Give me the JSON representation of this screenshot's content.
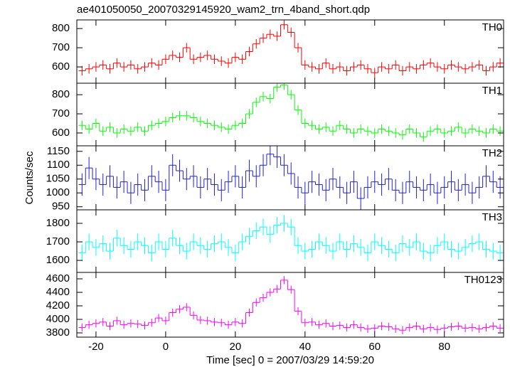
{
  "chart_data": [
    {
      "type": "line",
      "title": "ae401050050_20070329145920_wam2_trn_4band_short.qdp",
      "x": [
        -24,
        -22,
        -20,
        -18,
        -16,
        -14,
        -12,
        -10,
        -8,
        -6,
        -4,
        -2,
        0,
        2,
        4,
        6,
        8,
        10,
        12,
        14,
        16,
        18,
        20,
        22,
        24,
        26,
        28,
        30,
        32,
        34,
        36,
        38,
        40,
        42,
        44,
        46,
        48,
        50,
        52,
        54,
        56,
        58,
        60,
        62,
        64,
        66,
        68,
        70,
        72,
        74,
        76,
        78,
        80,
        82,
        84,
        86,
        88,
        90,
        92,
        94,
        96
      ],
      "series": [
        {
          "name": "TH0",
          "color": "#ff0000",
          "error": 25,
          "values": [
            580,
            590,
            600,
            610,
            590,
            620,
            600,
            610,
            590,
            600,
            620,
            610,
            640,
            660,
            650,
            700,
            640,
            650,
            660,
            640,
            630,
            620,
            650,
            640,
            680,
            720,
            750,
            770,
            760,
            820,
            780,
            700,
            610,
            600,
            590,
            620,
            590,
            600,
            580,
            600,
            610,
            590,
            570,
            600,
            590,
            610,
            580,
            600,
            590,
            610,
            620,
            600,
            590,
            610,
            600,
            590,
            600,
            610,
            580,
            600,
            620
          ]
        }
      ],
      "xlim": [
        -25.5,
        97
      ],
      "xticks": [
        -20,
        0,
        20,
        40,
        60,
        80
      ],
      "ylim": [
        515,
        845
      ],
      "yticks": [
        600,
        700,
        800
      ]
    },
    {
      "type": "line",
      "x": [
        -24,
        -22,
        -20,
        -18,
        -16,
        -14,
        -12,
        -10,
        -8,
        -6,
        -4,
        -2,
        0,
        2,
        4,
        6,
        8,
        10,
        12,
        14,
        16,
        18,
        20,
        22,
        24,
        26,
        28,
        30,
        32,
        34,
        36,
        38,
        40,
        42,
        44,
        46,
        48,
        50,
        52,
        54,
        56,
        58,
        60,
        62,
        64,
        66,
        68,
        70,
        72,
        74,
        76,
        78,
        80,
        82,
        84,
        86,
        88,
        90,
        92,
        94,
        96
      ],
      "series": [
        {
          "name": "TH1",
          "color": "#00ff00",
          "error": 25,
          "values": [
            640,
            620,
            650,
            610,
            630,
            600,
            620,
            610,
            630,
            610,
            640,
            650,
            660,
            680,
            690,
            690,
            680,
            660,
            650,
            640,
            630,
            620,
            640,
            650,
            700,
            760,
            790,
            780,
            840,
            850,
            800,
            720,
            650,
            640,
            620,
            630,
            610,
            640,
            620,
            600,
            620,
            610,
            600,
            620,
            610,
            600,
            590,
            620,
            600,
            580,
            610,
            620,
            600,
            610,
            630,
            600,
            620,
            610,
            600,
            620,
            610
          ]
        }
      ],
      "xlim": [
        -25.5,
        97
      ],
      "xticks": [
        -20,
        0,
        20,
        40,
        60,
        80
      ],
      "ylim": [
        533,
        860
      ],
      "yticks": [
        600,
        700,
        800
      ]
    },
    {
      "type": "line",
      "ylabel": "Counts/sec",
      "x": [
        -24,
        -22,
        -20,
        -18,
        -16,
        -14,
        -12,
        -10,
        -8,
        -6,
        -4,
        -2,
        0,
        2,
        4,
        6,
        8,
        10,
        12,
        14,
        16,
        18,
        20,
        22,
        24,
        26,
        28,
        30,
        32,
        34,
        36,
        38,
        40,
        42,
        44,
        46,
        48,
        50,
        52,
        54,
        56,
        58,
        60,
        62,
        64,
        66,
        68,
        70,
        72,
        74,
        76,
        78,
        80,
        82,
        84,
        86,
        88,
        90,
        92,
        94,
        96
      ],
      "series": [
        {
          "name": "TH2",
          "color": "#2020e0",
          "error": 40,
          "values": [
            1030,
            1090,
            1050,
            1030,
            1060,
            1020,
            1040,
            1000,
            1030,
            1010,
            1060,
            1040,
            1010,
            1100,
            1080,
            1050,
            1060,
            1020,
            1050,
            1030,
            1010,
            1040,
            1060,
            1020,
            1080,
            1060,
            1100,
            1140,
            1130,
            1100,
            1070,
            1020,
            1000,
            1040,
            1030,
            1010,
            1050,
            1020,
            1000,
            1040,
            980,
            1020,
            1040,
            1030,
            1050,
            1010,
            1000,
            1040,
            1020,
            1010,
            1030,
            1000,
            1020,
            1040,
            1010,
            1030,
            1000,
            1020,
            1060,
            1040,
            1020
          ]
        }
      ],
      "xlim": [
        -25.5,
        97
      ],
      "xticks": [
        -20,
        0,
        20,
        40,
        60,
        80
      ],
      "ylim": [
        939,
        1170
      ],
      "yticks": [
        950,
        1000,
        1050,
        1100,
        1150
      ]
    },
    {
      "type": "line",
      "x": [
        -24,
        -22,
        -20,
        -18,
        -16,
        -14,
        -12,
        -10,
        -8,
        -6,
        -4,
        -2,
        0,
        2,
        4,
        6,
        8,
        10,
        12,
        14,
        16,
        18,
        20,
        22,
        24,
        26,
        28,
        30,
        32,
        34,
        36,
        38,
        40,
        42,
        44,
        46,
        48,
        50,
        52,
        54,
        56,
        58,
        60,
        62,
        64,
        66,
        68,
        70,
        72,
        74,
        76,
        78,
        80,
        82,
        84,
        86,
        88,
        90,
        92,
        94,
        96
      ],
      "series": [
        {
          "name": "TH3",
          "color": "#00ffff",
          "error": 45,
          "values": [
            1640,
            1700,
            1670,
            1690,
            1650,
            1720,
            1680,
            1660,
            1700,
            1680,
            1640,
            1700,
            1660,
            1720,
            1680,
            1650,
            1700,
            1680,
            1660,
            1690,
            1700,
            1670,
            1640,
            1700,
            1730,
            1760,
            1780,
            1740,
            1790,
            1800,
            1780,
            1680,
            1650,
            1660,
            1700,
            1680,
            1650,
            1700,
            1660,
            1690,
            1670,
            1640,
            1700,
            1680,
            1660,
            1640,
            1690,
            1670,
            1700,
            1650,
            1640,
            1680,
            1700,
            1660,
            1650,
            1670,
            1690,
            1700,
            1660,
            1650,
            1640
          ]
        }
      ],
      "xlim": [
        -25.5,
        97
      ],
      "xticks": [
        -20,
        0,
        20,
        40,
        60,
        80
      ],
      "ylim": [
        1535,
        1873
      ],
      "yticks": [
        1600,
        1700,
        1800
      ]
    },
    {
      "type": "line",
      "xlabel": "Time [sec] 0 = 2007/03/29 14:59:20",
      "x": [
        -24,
        -22,
        -20,
        -18,
        -16,
        -14,
        -12,
        -10,
        -8,
        -6,
        -4,
        -2,
        0,
        2,
        4,
        6,
        8,
        10,
        12,
        14,
        16,
        18,
        20,
        22,
        24,
        26,
        28,
        30,
        32,
        34,
        36,
        38,
        40,
        42,
        44,
        46,
        48,
        50,
        52,
        54,
        56,
        58,
        60,
        62,
        64,
        66,
        68,
        70,
        72,
        74,
        76,
        78,
        80,
        82,
        84,
        86,
        88,
        90,
        92,
        94,
        96
      ],
      "series": [
        {
          "name": "TH0123",
          "color": "#ff00ff",
          "error": 60,
          "values": [
            3880,
            3920,
            3940,
            3960,
            3900,
            3980,
            3920,
            3940,
            3930,
            3910,
            3950,
            4020,
            3980,
            4100,
            4150,
            4180,
            4060,
            3990,
            3980,
            3960,
            3950,
            3920,
            3960,
            3940,
            4100,
            4250,
            4320,
            4400,
            4450,
            4580,
            4440,
            4120,
            3950,
            3960,
            3920,
            3940,
            3900,
            3910,
            3880,
            3920,
            3880,
            3860,
            3870,
            3900,
            3890,
            3860,
            3840,
            3880,
            3900,
            3860,
            3880,
            3850,
            3870,
            3890,
            3900,
            3870,
            3880,
            3860,
            3880,
            3900,
            3870
          ]
        }
      ],
      "xlim": [
        -25.5,
        97
      ],
      "xticks": [
        -20,
        0,
        20,
        40,
        60,
        80
      ],
      "ylim": [
        3737,
        4695
      ],
      "yticks": [
        3800,
        4000,
        4200,
        4400,
        4600
      ]
    }
  ]
}
